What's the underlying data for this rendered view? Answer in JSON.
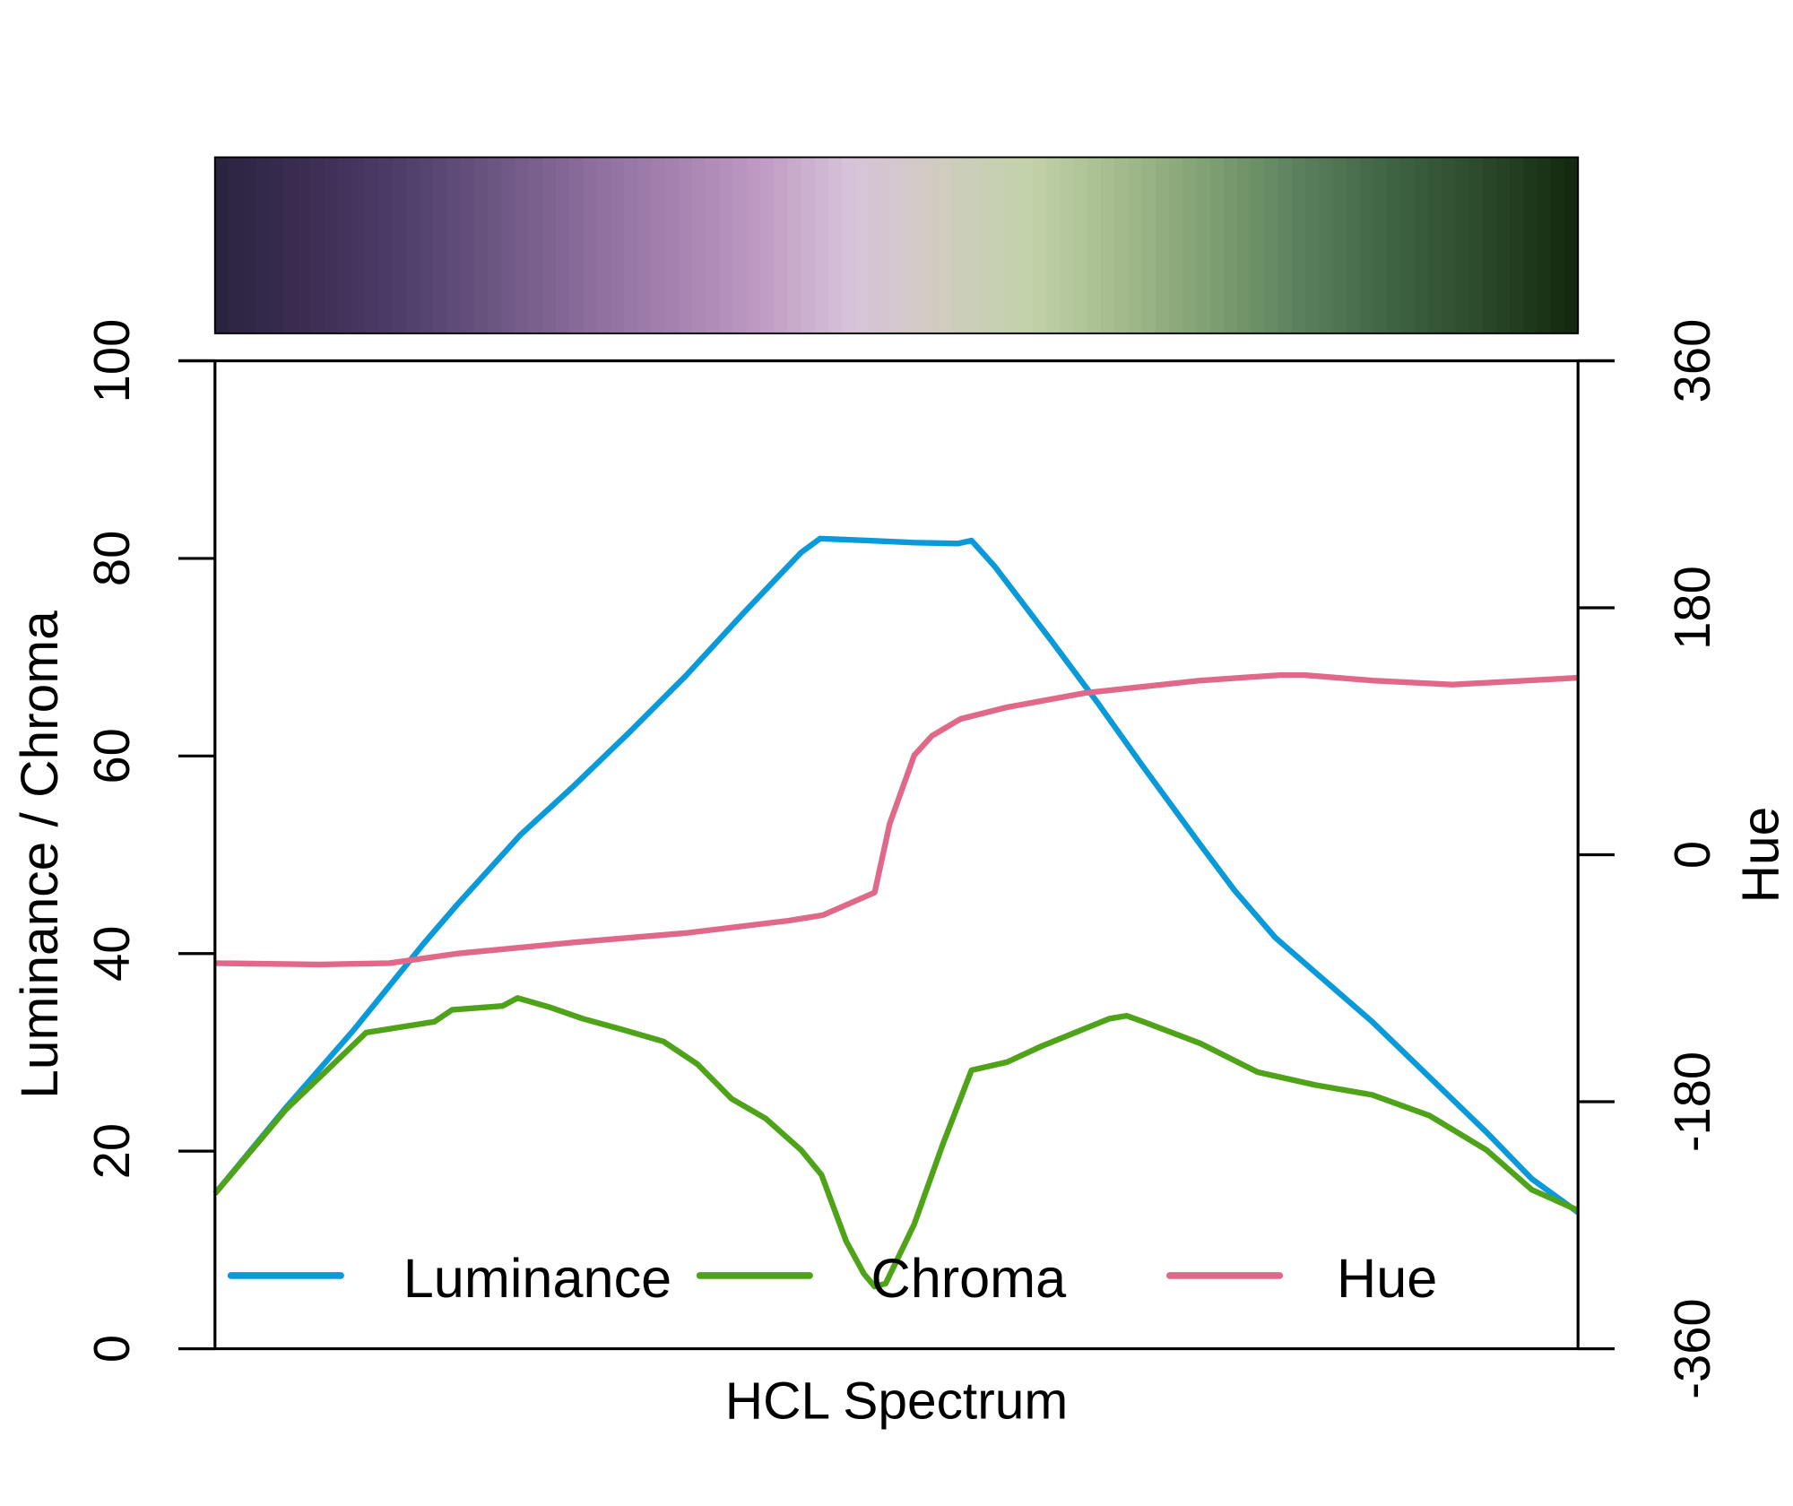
{
  "chart_data": {
    "type": "line",
    "title": "",
    "xlabel": "HCL Spectrum",
    "ylabel": "Luminance / Chroma",
    "y2label": "Hue",
    "xlim": [
      0,
      100
    ],
    "ylim": [
      0,
      100
    ],
    "y2lim": [
      -360,
      360
    ],
    "yticks": [
      "0",
      "20",
      "40",
      "60",
      "80",
      "100"
    ],
    "y2ticks": [
      "-360",
      "-180",
      "0",
      "180",
      "360"
    ],
    "legend": {
      "placement": "bottom",
      "entries": [
        "Luminance",
        "Chroma",
        "Hue"
      ]
    },
    "colorbar": [
      "#2b2440",
      "#3d2e54",
      "#4f3d6a",
      "#6a5581",
      "#8a6b9a",
      "#a482b0",
      "#bf9bc3",
      "#d7c3da",
      "#d0ccc0",
      "#c2d2a9",
      "#a3bb8c",
      "#7e9f72",
      "#5a7f5c",
      "#3f6444",
      "#2b4a2b",
      "#14290f"
    ],
    "series": [
      {
        "name": "Luminance",
        "axis": "left",
        "color": "#0a9ad9",
        "x": [
          0,
          5.2,
          10.2,
          15.3,
          17.8,
          22.4,
          26.2,
          30.4,
          34.6,
          38.8,
          43,
          44.4,
          48,
          51.3,
          54.5,
          55.5,
          57.2,
          61.4,
          64.8,
          68.1,
          72.3,
          74.8,
          77.8,
          84.9,
          93.3,
          96.6,
          100
        ],
        "y": [
          15.7,
          24.4,
          32.3,
          41,
          45,
          52,
          56.8,
          62.4,
          68.2,
          74.5,
          80.6,
          82,
          81.8,
          81.6,
          81.5,
          81.8,
          79.2,
          71.6,
          65.3,
          58.9,
          51,
          46.4,
          41.6,
          33.1,
          21.9,
          17.2,
          13.8
        ]
      },
      {
        "name": "Chroma",
        "axis": "left",
        "color": "#4fa319",
        "x": [
          0,
          5.2,
          11.1,
          16.1,
          17.4,
          21.1,
          22.2,
          24.5,
          27,
          29.9,
          32.9,
          35.4,
          37.9,
          40.4,
          43,
          44.5,
          46.3,
          47.6,
          48.4,
          49.2,
          51.3,
          53.4,
          55.5,
          58.1,
          60.6,
          63.1,
          65.6,
          66.9,
          68.1,
          72.3,
          76.5,
          80.7,
          84.9,
          89.1,
          93.3,
          96.6,
          100
        ],
        "y": [
          15.7,
          24.2,
          32,
          33.1,
          34.3,
          34.7,
          35.5,
          34.6,
          33.4,
          32.3,
          31.1,
          28.8,
          25.3,
          23.3,
          20.1,
          17.6,
          10.9,
          7.6,
          6.3,
          6.6,
          12.6,
          20.7,
          28.2,
          29,
          30.6,
          32,
          33.4,
          33.7,
          33.1,
          30.9,
          28,
          26.7,
          25.7,
          23.6,
          20.1,
          16.1,
          14
        ]
      },
      {
        "name": "Hue",
        "axis": "right",
        "color": "#e0698a",
        "x": [
          0,
          7.7,
          12.8,
          17.8,
          26.2,
          34.6,
          42.1,
          44.6,
          48.4,
          49.5,
          51.3,
          52.6,
          54.7,
          58.1,
          63.9,
          72.3,
          78.2,
          79.9,
          84.9,
          90.8,
          100
        ],
        "y": [
          -79,
          -80,
          -79,
          -72,
          -64,
          -57,
          -48,
          -44,
          -27.5,
          22.5,
          72.5,
          86.7,
          99,
          107.5,
          118,
          127,
          131,
          131,
          127,
          124,
          129
        ]
      }
    ]
  }
}
